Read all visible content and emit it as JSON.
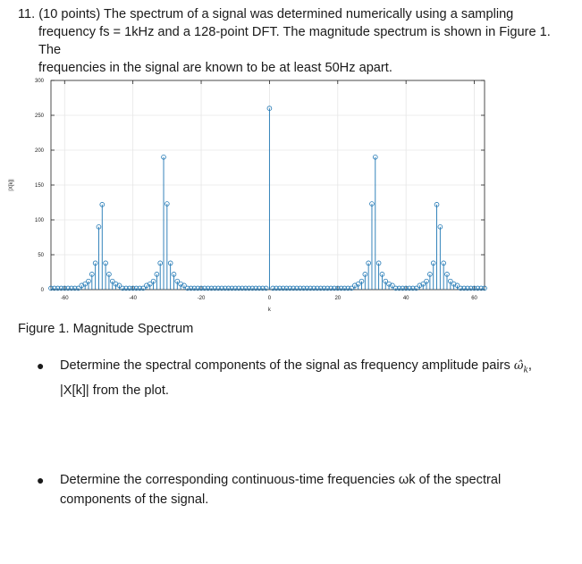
{
  "question": {
    "line1": "11. (10 points) The spectrum of a signal was determined numerically using a sampling",
    "line2": "frequency fs = 1kHz and a 128-point DFT. The magnitude spectrum is shown in Figure 1. The",
    "line3": "frequencies in the signal are known to be at least 50Hz apart."
  },
  "figure": {
    "caption": "Figure 1. Magnitude Spectrum"
  },
  "bullets": {
    "b1_line1_pre": "Determine the spectral components of the signal as frequency amplitude pairs",
    "b1_omega": "ω̂",
    "b1_omega_sub": "k",
    "b1_line1_post": ",",
    "b1_line2": "|X[k]| from the plot.",
    "b2_line1": "Determine the corresponding continuous-time frequencies ωk of the spectral",
    "b2_line2": "components of the signal.",
    "bullet_char": "●"
  },
  "chart_data": {
    "type": "stem",
    "title": "",
    "xlabel": "k",
    "ylabel": "|X[k]|",
    "xlim": [
      -64,
      63
    ],
    "ylim": [
      0,
      300
    ],
    "xticks": [
      -60,
      -40,
      -20,
      0,
      20,
      40,
      60
    ],
    "yticks": [
      0,
      50,
      100,
      150,
      200,
      250,
      300
    ],
    "grid": true,
    "color": "#1f77b4",
    "points": [
      [
        -55,
        6
      ],
      [
        -54,
        8
      ],
      [
        -53,
        12
      ],
      [
        -52,
        22
      ],
      [
        -51,
        38
      ],
      [
        -50,
        90
      ],
      [
        -49,
        122
      ],
      [
        -48,
        38
      ],
      [
        -47,
        22
      ],
      [
        -46,
        12
      ],
      [
        -45,
        8
      ],
      [
        -44,
        6
      ],
      [
        -36,
        6
      ],
      [
        -35,
        8
      ],
      [
        -34,
        12
      ],
      [
        -33,
        22
      ],
      [
        -32,
        38
      ],
      [
        -31,
        190
      ],
      [
        -30,
        123
      ],
      [
        -29,
        38
      ],
      [
        -28,
        22
      ],
      [
        -27,
        12
      ],
      [
        -26,
        8
      ],
      [
        -25,
        6
      ],
      [
        0,
        260
      ],
      [
        25,
        6
      ],
      [
        26,
        8
      ],
      [
        27,
        12
      ],
      [
        28,
        22
      ],
      [
        29,
        38
      ],
      [
        30,
        123
      ],
      [
        31,
        190
      ],
      [
        32,
        38
      ],
      [
        33,
        22
      ],
      [
        34,
        12
      ],
      [
        35,
        8
      ],
      [
        36,
        6
      ],
      [
        44,
        6
      ],
      [
        45,
        8
      ],
      [
        46,
        12
      ],
      [
        47,
        22
      ],
      [
        48,
        38
      ],
      [
        49,
        122
      ],
      [
        50,
        90
      ],
      [
        51,
        38
      ],
      [
        52,
        22
      ],
      [
        53,
        12
      ],
      [
        54,
        8
      ],
      [
        55,
        6
      ]
    ],
    "baseline_value": 2
  }
}
